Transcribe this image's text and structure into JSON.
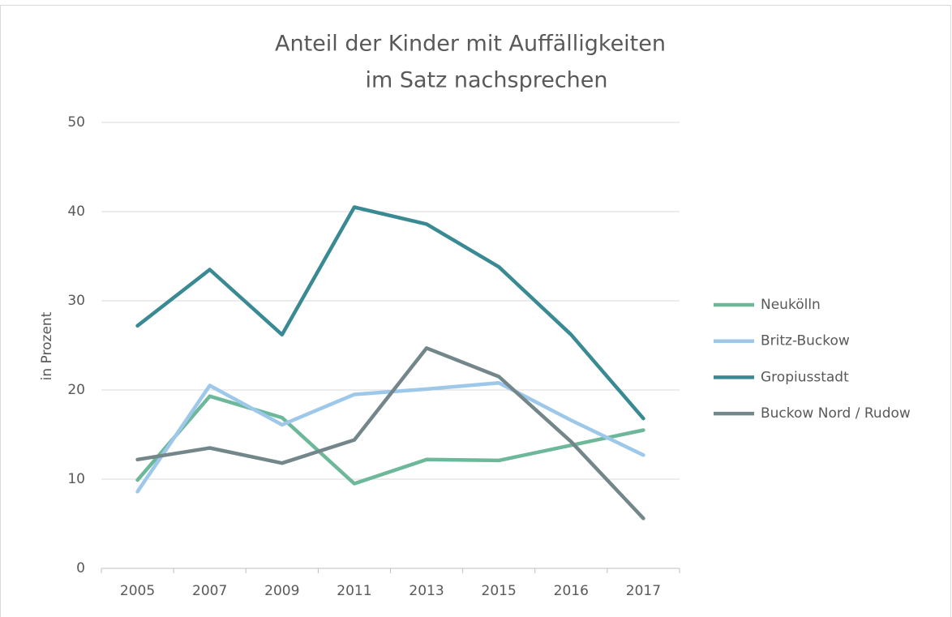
{
  "chart_data": {
    "type": "line",
    "title": [
      "Anteil der Kinder mit Auffälligkeiten",
      "im Satz nachsprechen"
    ],
    "y_label": "in Prozent",
    "categories": [
      "2005",
      "2007",
      "2009",
      "2011",
      "2013",
      "2015",
      "2016",
      "2017"
    ],
    "series": [
      {
        "name": "Neukölln",
        "color": "#6db89a",
        "values": [
          9.9,
          19.3,
          16.9,
          9.5,
          12.2,
          12.1,
          13.8,
          15.5
        ]
      },
      {
        "name": "Britz-Buckow",
        "color": "#9dc8ea",
        "values": [
          8.6,
          20.5,
          16.1,
          19.5,
          20.1,
          20.8,
          16.6,
          12.7
        ]
      },
      {
        "name": "Gropiusstadt",
        "color": "#3a8a94",
        "values": [
          27.2,
          33.5,
          26.2,
          40.5,
          38.6,
          33.8,
          26.2,
          16.8
        ]
      },
      {
        "name": "Buckow Nord / Rudow",
        "color": "#73878a",
        "values": [
          12.2,
          13.5,
          11.8,
          14.4,
          24.7,
          21.5,
          14.2,
          5.6
        ]
      }
    ],
    "ylim": [
      0,
      50
    ],
    "yticks": [
      0,
      10,
      20,
      30,
      40,
      50
    ],
    "grid": true,
    "legend": "right"
  }
}
